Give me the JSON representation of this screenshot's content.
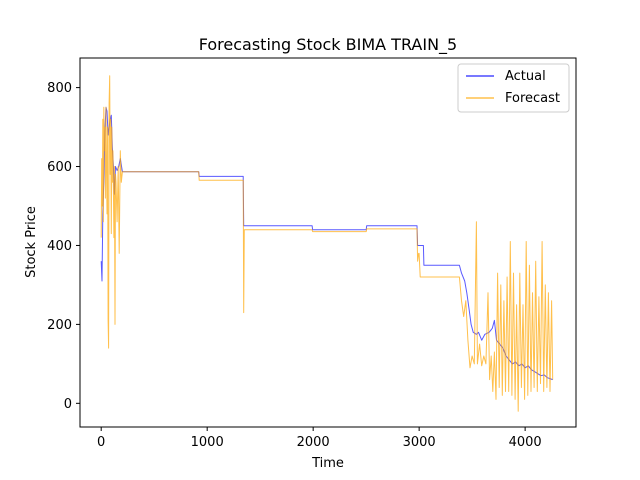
{
  "chart_data": {
    "type": "line",
    "title": "Forecasting Stock BIMA TRAIN_5",
    "xlabel": "Time",
    "ylabel": "Stock Price",
    "xlim": [
      -200,
      4480
    ],
    "ylim": [
      -60,
      875
    ],
    "xticks": [
      0,
      1000,
      2000,
      3000,
      4000
    ],
    "yticks": [
      0,
      200,
      400,
      600,
      800
    ],
    "xtick_labels": [
      "0",
      "1000",
      "2000",
      "3000",
      "4000"
    ],
    "ytick_labels": [
      "0",
      "200",
      "400",
      "600",
      "800"
    ],
    "grid": false,
    "legend_position": "upper right",
    "series": [
      {
        "name": "Actual",
        "color": "#0000ff",
        "points": [
          [
            0,
            360
          ],
          [
            8,
            310
          ],
          [
            15,
            480
          ],
          [
            25,
            560
          ],
          [
            35,
            690
          ],
          [
            45,
            750
          ],
          [
            55,
            740
          ],
          [
            65,
            680
          ],
          [
            75,
            700
          ],
          [
            85,
            720
          ],
          [
            95,
            730
          ],
          [
            105,
            650
          ],
          [
            115,
            600
          ],
          [
            125,
            530
          ],
          [
            135,
            600
          ],
          [
            150,
            590
          ],
          [
            165,
            600
          ],
          [
            180,
            620
          ],
          [
            200,
            587
          ],
          [
            400,
            587
          ],
          [
            920,
            587
          ],
          [
            925,
            575
          ],
          [
            1340,
            575
          ],
          [
            1345,
            450
          ],
          [
            1990,
            450
          ],
          [
            1995,
            440
          ],
          [
            2500,
            440
          ],
          [
            2505,
            450
          ],
          [
            2980,
            450
          ],
          [
            2985,
            400
          ],
          [
            3040,
            400
          ],
          [
            3045,
            350
          ],
          [
            3380,
            350
          ],
          [
            3400,
            330
          ],
          [
            3430,
            310
          ],
          [
            3450,
            280
          ],
          [
            3470,
            240
          ],
          [
            3490,
            200
          ],
          [
            3510,
            180
          ],
          [
            3540,
            175
          ],
          [
            3560,
            180
          ],
          [
            3590,
            160
          ],
          [
            3620,
            175
          ],
          [
            3660,
            180
          ],
          [
            3690,
            190
          ],
          [
            3710,
            210
          ],
          [
            3730,
            160
          ],
          [
            3760,
            150
          ],
          [
            3790,
            140
          ],
          [
            3820,
            120
          ],
          [
            3850,
            110
          ],
          [
            3880,
            100
          ],
          [
            3910,
            105
          ],
          [
            3940,
            95
          ],
          [
            3970,
            100
          ],
          [
            4000,
            90
          ],
          [
            4030,
            95
          ],
          [
            4060,
            85
          ],
          [
            4090,
            80
          ],
          [
            4120,
            75
          ],
          [
            4150,
            70
          ],
          [
            4180,
            72
          ],
          [
            4210,
            65
          ],
          [
            4240,
            62
          ],
          [
            4260,
            60
          ]
        ]
      },
      {
        "name": "Forecast",
        "color": "#ffa500",
        "points": [
          [
            0,
            420
          ],
          [
            5,
            620
          ],
          [
            10,
            500
          ],
          [
            15,
            720
          ],
          [
            20,
            460
          ],
          [
            25,
            750
          ],
          [
            30,
            640
          ],
          [
            35,
            700
          ],
          [
            40,
            520
          ],
          [
            45,
            750
          ],
          [
            50,
            600
          ],
          [
            55,
            480
          ],
          [
            60,
            700
          ],
          [
            65,
            210
          ],
          [
            70,
            140
          ],
          [
            75,
            760
          ],
          [
            80,
            830
          ],
          [
            85,
            580
          ],
          [
            90,
            720
          ],
          [
            95,
            430
          ],
          [
            100,
            700
          ],
          [
            105,
            560
          ],
          [
            110,
            640
          ],
          [
            115,
            540
          ],
          [
            120,
            420
          ],
          [
            125,
            600
          ],
          [
            130,
            200
          ],
          [
            135,
            580
          ],
          [
            140,
            560
          ],
          [
            150,
            460
          ],
          [
            160,
            600
          ],
          [
            170,
            380
          ],
          [
            180,
            640
          ],
          [
            190,
            560
          ],
          [
            200,
            587
          ],
          [
            920,
            587
          ],
          [
            925,
            565
          ],
          [
            1340,
            565
          ],
          [
            1345,
            230
          ],
          [
            1350,
            440
          ],
          [
            1990,
            440
          ],
          [
            1995,
            435
          ],
          [
            2500,
            435
          ],
          [
            2505,
            442
          ],
          [
            2980,
            442
          ],
          [
            2985,
            360
          ],
          [
            2995,
            380
          ],
          [
            3000,
            380
          ],
          [
            3010,
            320
          ],
          [
            3380,
            320
          ],
          [
            3400,
            260
          ],
          [
            3420,
            220
          ],
          [
            3440,
            260
          ],
          [
            3460,
            160
          ],
          [
            3480,
            90
          ],
          [
            3500,
            120
          ],
          [
            3520,
            100
          ],
          [
            3540,
            460
          ],
          [
            3550,
            100
          ],
          [
            3570,
            150
          ],
          [
            3590,
            95
          ],
          [
            3610,
            120
          ],
          [
            3630,
            100
          ],
          [
            3650,
            280
          ],
          [
            3665,
            60
          ],
          [
            3680,
            120
          ],
          [
            3695,
            30
          ],
          [
            3710,
            130
          ],
          [
            3725,
            10
          ],
          [
            3740,
            330
          ],
          [
            3755,
            40
          ],
          [
            3770,
            300
          ],
          [
            3785,
            20
          ],
          [
            3800,
            260
          ],
          [
            3815,
            30
          ],
          [
            3830,
            320
          ],
          [
            3845,
            30
          ],
          [
            3860,
            410
          ],
          [
            3875,
            20
          ],
          [
            3890,
            330
          ],
          [
            3905,
            10
          ],
          [
            3920,
            250
          ],
          [
            3935,
            -20
          ],
          [
            3950,
            330
          ],
          [
            3965,
            40
          ],
          [
            3980,
            250
          ],
          [
            3995,
            10
          ],
          [
            4010,
            410
          ],
          [
            4025,
            20
          ],
          [
            4040,
            350
          ],
          [
            4055,
            30
          ],
          [
            4070,
            280
          ],
          [
            4085,
            40
          ],
          [
            4100,
            360
          ],
          [
            4115,
            30
          ],
          [
            4130,
            270
          ],
          [
            4145,
            50
          ],
          [
            4160,
            410
          ],
          [
            4175,
            30
          ],
          [
            4190,
            300
          ],
          [
            4205,
            40
          ],
          [
            4220,
            280
          ],
          [
            4235,
            30
          ],
          [
            4250,
            260
          ],
          [
            4260,
            60
          ]
        ]
      }
    ]
  }
}
